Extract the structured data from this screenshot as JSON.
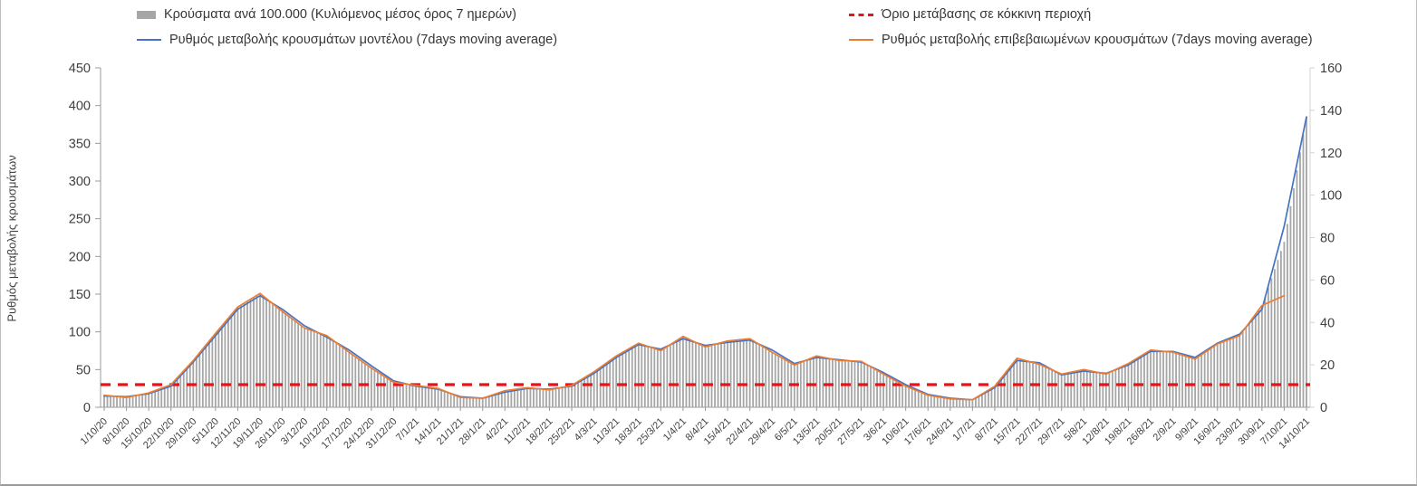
{
  "y_axis_title": "Ρυθμός μεταβολής κρουσμάτων",
  "legend": {
    "bars": "Κρούσματα ανά 100.000 (Κυλιόμενος μέσος όρος 7 ημερών)",
    "threshold": "Όριο μετάβασης  σε κόκκινη περιοχή",
    "model": "Ρυθμός μεταβολής κρουσμάτων μοντέλου (7days moving average)",
    "confirmed": "Ρυθμός μεταβολής επιβεβαιωμένων κρουσμάτων (7days moving average)"
  },
  "colors": {
    "bar": "#a6a6a6",
    "model_line": "#4472c4",
    "confirmed_line": "#ed7d31",
    "threshold": "#e8131a",
    "axis": "#9b9b9b",
    "tick_text": "#404040"
  },
  "chart_data": {
    "type": "bar",
    "subtype": "combo bar+line, dual axis",
    "title": "",
    "xlabel": "",
    "ylabel_left": "Ρυθμός μεταβολής κρουσμάτων",
    "left_axis": {
      "min": 0,
      "max": 450,
      "step": 50,
      "ticks": [
        0,
        50,
        100,
        150,
        200,
        250,
        300,
        350,
        400,
        450
      ]
    },
    "right_axis": {
      "min": 0,
      "max": 160,
      "step": 20,
      "ticks": [
        0,
        20,
        40,
        60,
        80,
        100,
        120,
        140,
        160
      ]
    },
    "legend_position": "top",
    "grid": false,
    "categories": [
      "1/10/20",
      "8/10/20",
      "15/10/20",
      "22/10/20",
      "29/10/20",
      "5/11/20",
      "12/11/20",
      "19/11/20",
      "26/11/20",
      "3/12/20",
      "10/12/20",
      "17/12/20",
      "24/12/20",
      "31/12/20",
      "7/1/21",
      "14/1/21",
      "21/1/21",
      "28/1/21",
      "4/2/21",
      "11/2/21",
      "18/2/21",
      "25/2/21",
      "4/3/21",
      "11/3/21",
      "18/3/21",
      "25/3/21",
      "1/4/21",
      "8/4/21",
      "15/4/21",
      "22/4/21",
      "29/4/21",
      "6/5/21",
      "13/5/21",
      "20/5/21",
      "27/5/21",
      "3/6/21",
      "10/6/21",
      "17/6/21",
      "24/6/21",
      "1/7/21",
      "8/7/21",
      "15/7/21",
      "22/7/21",
      "29/7/21",
      "5/8/21",
      "12/8/21",
      "19/8/21",
      "26/8/21",
      "2/9/21",
      "9/9/21",
      "16/9/21",
      "23/9/21",
      "30/9/21",
      "7/10/21",
      "14/10/21"
    ],
    "series": [
      {
        "name": "Κρούσματα ανά 100.000 (Κυλιόμενος μέσος όρος 7 ημερών)",
        "type": "bar",
        "axis": "right",
        "values": [
          5.7,
          4.6,
          6.8,
          10.7,
          22.0,
          34.8,
          47.3,
          53.7,
          45.2,
          37.3,
          33.8,
          26.0,
          18.5,
          11.7,
          10.3,
          8.9,
          4.6,
          4.3,
          7.8,
          9.2,
          8.2,
          10.3,
          16.7,
          24.2,
          30.2,
          26.7,
          33.4,
          28.4,
          31.3,
          32.4,
          26.0,
          19.9,
          24.2,
          22.0,
          21.7,
          15.6,
          10.0,
          5.7,
          3.9,
          3.6,
          10.0,
          23.1,
          20.3,
          15.6,
          17.8,
          15.6,
          20.6,
          27.0,
          26.0,
          22.8,
          29.9,
          33.8,
          48.0,
          78.0,
          137.0
        ]
      },
      {
        "name": "Ρυθμός μεταβολής κρουσμάτων μοντέλου (7days moving average)",
        "type": "line",
        "axis": "left",
        "values": [
          15,
          14,
          18,
          28,
          60,
          95,
          130,
          148,
          130,
          108,
          93,
          76,
          55,
          35,
          28,
          24,
          14,
          12,
          20,
          25,
          24,
          28,
          45,
          66,
          83,
          77,
          91,
          82,
          86,
          89,
          76,
          58,
          66,
          63,
          60,
          46,
          30,
          17,
          12,
          10,
          26,
          62,
          59,
          43,
          48,
          45,
          56,
          74,
          74,
          66,
          85,
          97,
          130,
          240,
          385
        ]
      },
      {
        "name": "Ρυθμός μεταβολής επιβεβαιωμένων κρουσμάτων (7days moving average)",
        "type": "line",
        "axis": "left",
        "values": [
          16,
          13,
          19,
          30,
          62,
          98,
          133,
          151,
          127,
          105,
          95,
          73,
          52,
          33,
          29,
          25,
          13,
          12,
          22,
          26,
          23,
          29,
          47,
          68,
          85,
          75,
          94,
          80,
          88,
          91,
          73,
          56,
          68,
          62,
          61,
          44,
          28,
          16,
          11,
          10,
          28,
          65,
          57,
          44,
          50,
          44,
          58,
          76,
          73,
          64,
          84,
          95,
          135,
          148,
          null
        ]
      },
      {
        "name": "Όριο μετάβασης σε κόκκινη περιοχή",
        "type": "threshold",
        "axis": "left",
        "value": 30
      }
    ]
  }
}
